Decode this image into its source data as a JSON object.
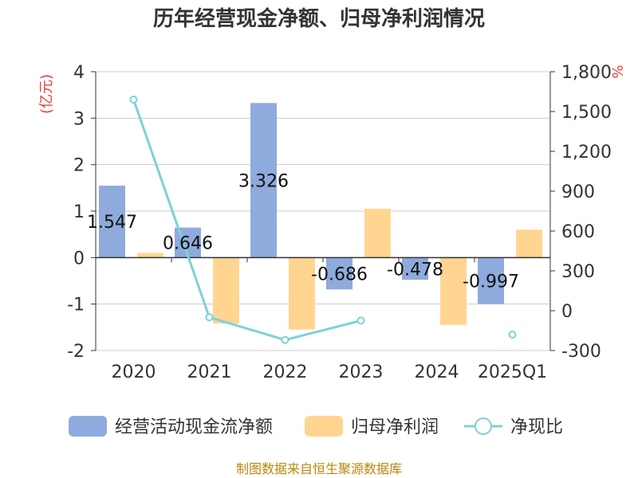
{
  "chart_data": {
    "type": "bar",
    "title": "历年经营现金净额、归母净利润情况",
    "categories": [
      "2020",
      "2021",
      "2022",
      "2023",
      "2024",
      "2025Q1"
    ],
    "y_left": {
      "unit": "(亿元)",
      "ylim": [
        -2,
        4
      ],
      "ticks": [
        "4",
        "3",
        "2",
        "1",
        "0",
        "-1",
        "-2"
      ]
    },
    "y_right": {
      "unit": "%",
      "ylim": [
        -300,
        1800
      ],
      "ticks": [
        "1,800",
        "1,500",
        "1,200",
        "900",
        "600",
        "300",
        "0",
        "-300"
      ]
    },
    "series": [
      {
        "name": "经营活动现金流净额",
        "axis": "left",
        "kind": "bar",
        "color": "#8faadc",
        "values": [
          1.547,
          0.646,
          3.326,
          -0.686,
          -0.478,
          -0.997
        ],
        "labels": [
          "1.547",
          "0.646",
          "3.326",
          "-0.686",
          "-0.478",
          "-0.997"
        ]
      },
      {
        "name": "归母净利润",
        "axis": "left",
        "kind": "bar",
        "color": "#ffd591",
        "values": [
          0.1,
          -1.42,
          -1.55,
          1.05,
          -1.45,
          0.6
        ]
      },
      {
        "name": "净现比",
        "axis": "right",
        "kind": "line",
        "color": "#7fd1d8",
        "values": [
          1590,
          -50,
          -220,
          -75,
          null,
          -180
        ]
      }
    ],
    "grid": true,
    "legend_position": "bottom"
  },
  "footer": {
    "source": "制图数据来自恒生聚源数据库"
  }
}
